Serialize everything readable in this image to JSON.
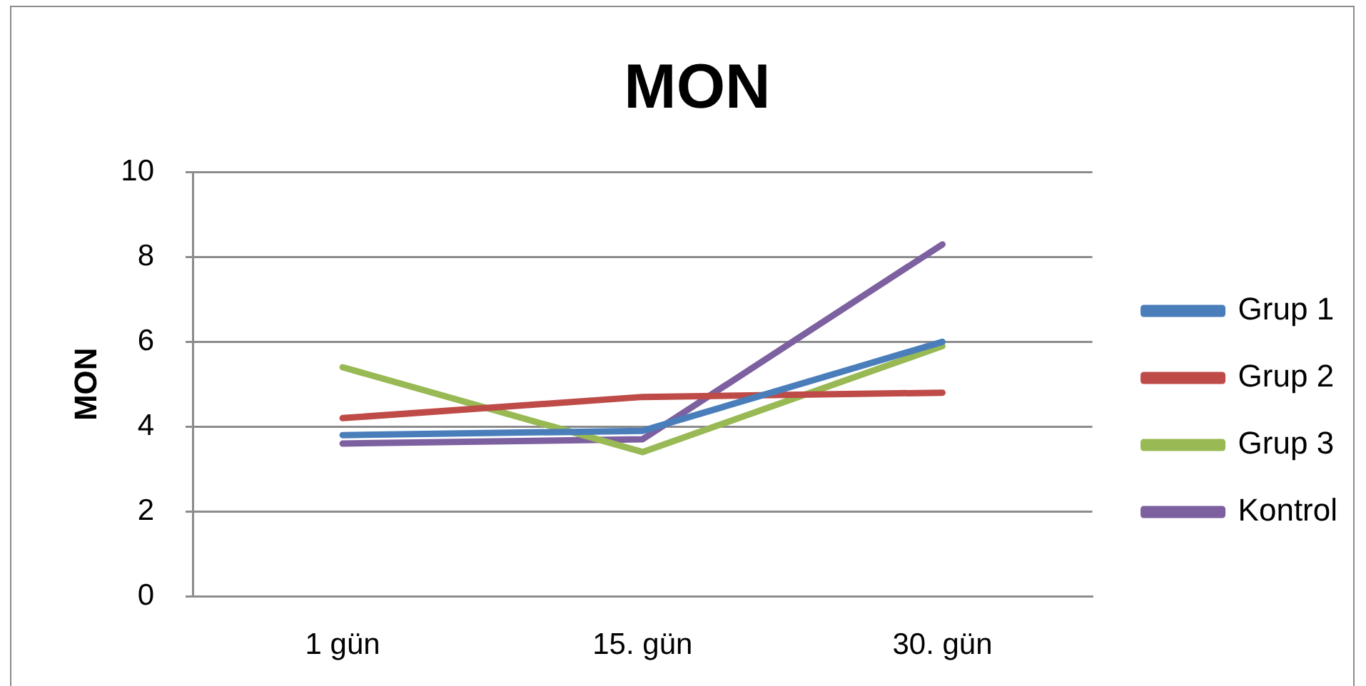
{
  "chart_data": {
    "type": "line",
    "title": "MON",
    "ylabel": "MON",
    "categories": [
      "1 gün",
      "15. gün",
      "30. gün"
    ],
    "series": [
      {
        "name": "Grup 1",
        "color": "#4a7ebb",
        "values": [
          3.8,
          3.9,
          6.0
        ]
      },
      {
        "name": "Grup 2",
        "color": "#be4b48",
        "values": [
          4.2,
          4.7,
          4.8
        ]
      },
      {
        "name": "Grup 3",
        "color": "#98b954",
        "values": [
          5.4,
          3.4,
          5.9
        ]
      },
      {
        "name": "Kontrol",
        "color": "#7d60a0",
        "values": [
          3.6,
          3.7,
          8.3
        ]
      }
    ],
    "ylim": [
      0,
      10
    ],
    "yticks": [
      0,
      2,
      4,
      6,
      8,
      10
    ],
    "grid": "y",
    "legend": "right",
    "marker": "none",
    "line_style": "solid"
  }
}
